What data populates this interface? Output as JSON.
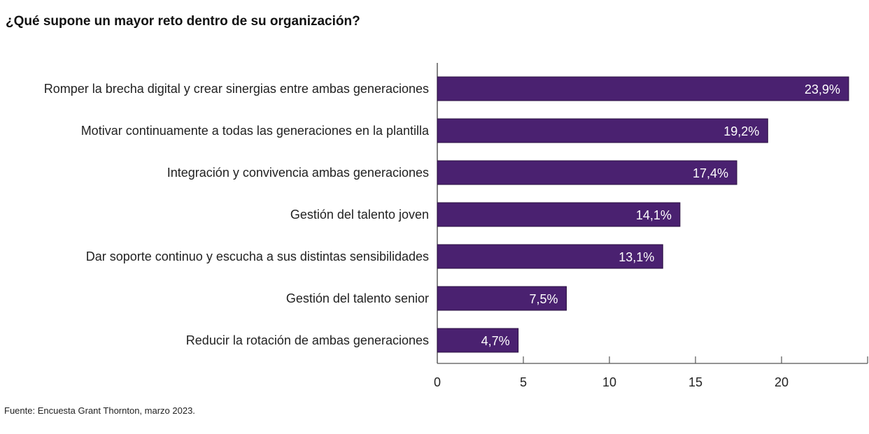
{
  "chart_data": {
    "type": "bar",
    "orientation": "horizontal",
    "title": "¿Qué supone un mayor reto dentro de su organización?",
    "categories": [
      "Romper la brecha digital y crear sinergias entre ambas generaciones",
      "Motivar continuamente a todas las generaciones en la plantilla",
      "Integración y convivencia ambas generaciones",
      "Gestión del talento joven",
      "Dar soporte continuo y escucha a sus distintas sensibilidades",
      "Gestión del talento senior",
      "Reducir la rotación de ambas generaciones"
    ],
    "values": [
      23.9,
      19.2,
      17.4,
      14.1,
      13.1,
      7.5,
      4.7
    ],
    "data_labels": [
      "23,9%",
      "19,2%",
      "17,4%",
      "14,1%",
      "13,1%",
      "7,5%",
      "4,7%"
    ],
    "xlim": [
      0,
      25
    ],
    "xticks": [
      0,
      5,
      10,
      15,
      20
    ],
    "grid": false,
    "bar_color": "#4a2170",
    "source": "Fuente: Encuesta Grant Thornton, marzo 2023."
  }
}
